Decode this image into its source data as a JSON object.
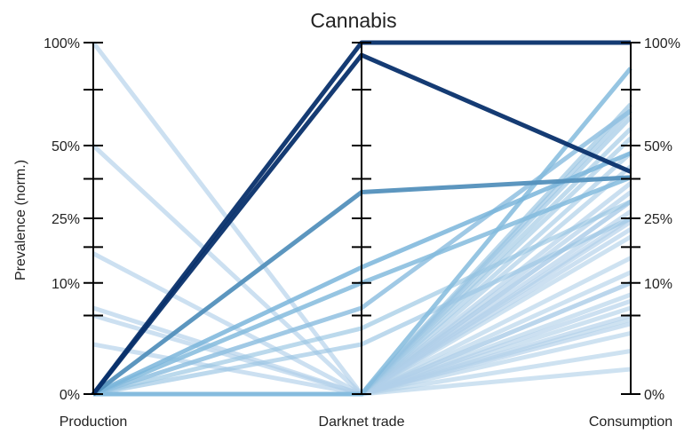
{
  "chart_data": {
    "type": "parallel_coordinates",
    "title": "Cannabis",
    "ylabel": "Prevalence (norm.)",
    "axes": [
      "Production",
      "Darknet trade",
      "Consumption"
    ],
    "yticks": [
      {
        "value": 0,
        "label": "0%"
      },
      {
        "value": 0.1,
        "label": "10%"
      },
      {
        "value": 0.25,
        "label": "25%"
      },
      {
        "value": 0.5,
        "label": "50%"
      },
      {
        "value": 1,
        "label": "100%"
      }
    ],
    "intermediate_ticks": [
      0.05,
      0.175,
      0.375,
      0.75
    ],
    "scale": "sqrt",
    "ylim": [
      0,
      1
    ],
    "color_scale": {
      "low": "#c6dbef",
      "mid": "#6baed6",
      "high": "#08306b"
    },
    "series": [
      {
        "values": [
          0.0,
          0.0,
          0.2
        ],
        "shade": 0.1
      },
      {
        "values": [
          0.0,
          0.0,
          0.15
        ],
        "shade": 0.1
      },
      {
        "values": [
          0.0,
          0.0,
          0.12
        ],
        "shade": 0.1
      },
      {
        "values": [
          0.0,
          0.0,
          0.1
        ],
        "shade": 0.1
      },
      {
        "values": [
          0.0,
          0.0,
          0.08
        ],
        "shade": 0.1
      },
      {
        "values": [
          0.0,
          0.0,
          0.06
        ],
        "shade": 0.1
      },
      {
        "values": [
          0.0,
          0.0,
          0.045
        ],
        "shade": 0.1
      },
      {
        "values": [
          0.0,
          0.0,
          0.03
        ],
        "shade": 0.1
      },
      {
        "values": [
          0.0,
          0.0,
          0.015
        ],
        "shade": 0.1
      },
      {
        "values": [
          0.0,
          0.0,
          0.005
        ],
        "shade": 0.1
      },
      {
        "values": [
          0.0,
          0.0,
          0.3
        ],
        "shade": 0.12
      },
      {
        "values": [
          0.0,
          0.0,
          0.27
        ],
        "shade": 0.12
      },
      {
        "values": [
          0.0,
          0.0,
          0.24
        ],
        "shade": 0.12
      },
      {
        "values": [
          0.0,
          0.0,
          0.22
        ],
        "shade": 0.12
      },
      {
        "values": [
          0.0,
          0.0,
          0.36
        ],
        "shade": 0.14
      },
      {
        "values": [
          0.0,
          0.0,
          0.33
        ],
        "shade": 0.14
      },
      {
        "values": [
          0.0,
          0.0,
          0.42
        ],
        "shade": 0.16
      },
      {
        "values": [
          0.0,
          0.0,
          0.47
        ],
        "shade": 0.18
      },
      {
        "values": [
          0.0,
          0.0,
          0.53
        ],
        "shade": 0.2
      },
      {
        "values": [
          0.0,
          0.0,
          0.57
        ],
        "shade": 0.22
      },
      {
        "values": [
          0.0,
          0.0,
          0.62
        ],
        "shade": 0.24
      },
      {
        "values": [
          0.0,
          0.0,
          0.65
        ],
        "shade": 0.24
      },
      {
        "values": [
          0.0,
          0.0,
          0.68
        ],
        "shade": 0.28
      },
      {
        "values": [
          0.0,
          0.0,
          0.86
        ],
        "shade": 0.36
      },
      {
        "values": [
          1.0,
          0.0,
          0.3
        ],
        "shade": 0.12
      },
      {
        "values": [
          0.5,
          0.0,
          0.25
        ],
        "shade": 0.12
      },
      {
        "values": [
          0.16,
          0.0,
          0.1
        ],
        "shade": 0.12
      },
      {
        "values": [
          0.06,
          0.0,
          0.05
        ],
        "shade": 0.12
      },
      {
        "values": [
          0.05,
          0.0,
          0.07
        ],
        "shade": 0.12
      },
      {
        "values": [
          0.02,
          0.0,
          0.04
        ],
        "shade": 0.12
      },
      {
        "values": [
          0.0,
          0.02,
          0.25
        ],
        "shade": 0.24
      },
      {
        "values": [
          0.0,
          0.035,
          0.3
        ],
        "shade": 0.26
      },
      {
        "values": [
          0.0,
          0.06,
          0.65
        ],
        "shade": 0.3
      },
      {
        "values": [
          0.0,
          0.1,
          0.38
        ],
        "shade": 0.36
      },
      {
        "values": [
          0.0,
          0.13,
          0.47
        ],
        "shade": 0.42
      },
      {
        "values": [
          0.0,
          0.33,
          0.38
        ],
        "shade": 0.62
      },
      {
        "values": [
          0.0,
          0.93,
          0.4
        ],
        "shade": 1.0
      },
      {
        "values": [
          0.0,
          1.0,
          1.0
        ],
        "shade": 1.0
      }
    ]
  }
}
